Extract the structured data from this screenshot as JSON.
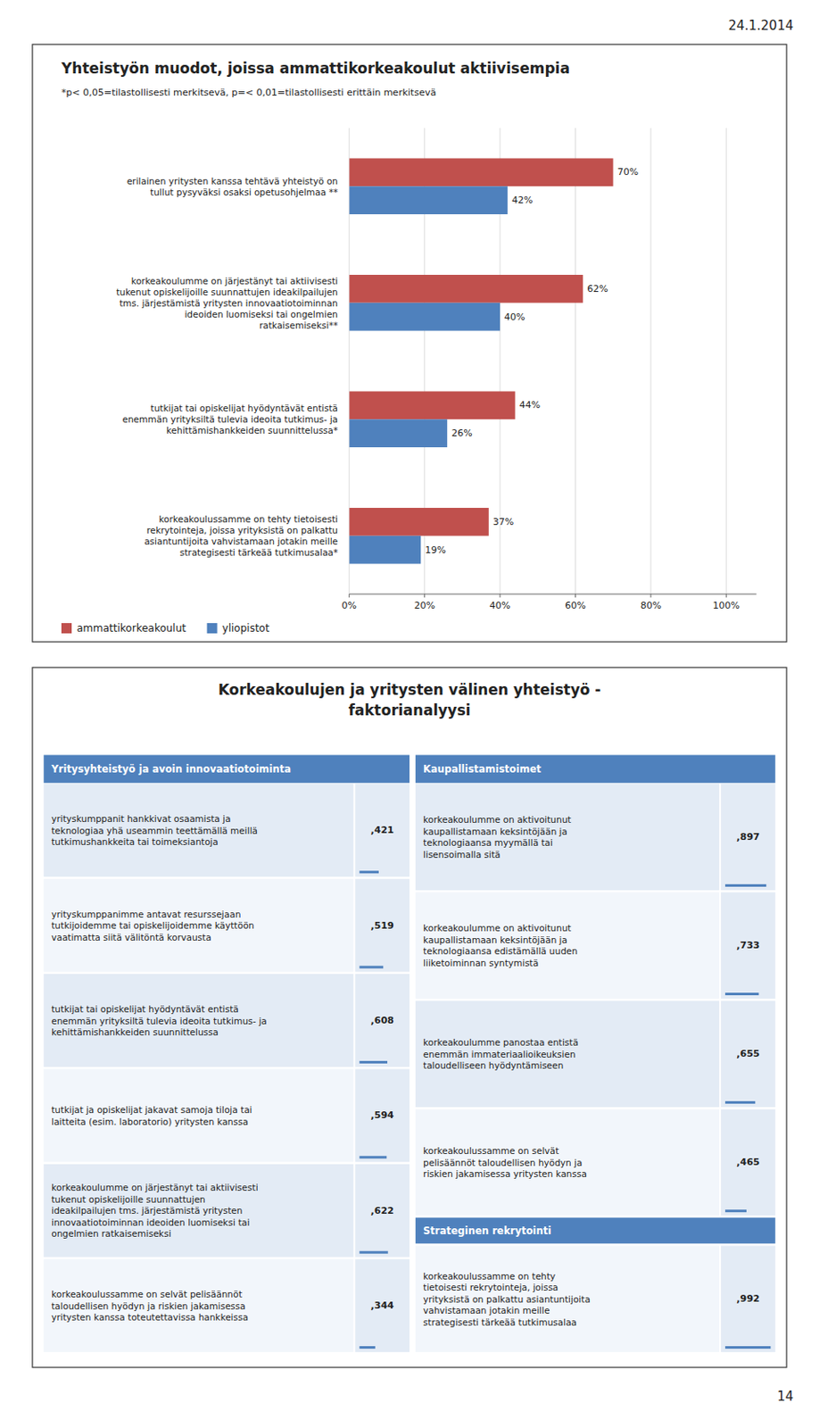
{
  "date_label": "24.1.2014",
  "page_number": "14",
  "table_title": "Korkeakoulujen ja yritysten välinen yhteistyö -\nfaktorianalyysi",
  "chart_data": [
    {
      "type": "bar",
      "orientation": "horizontal",
      "title": "Yhteistyön muodot, joissa ammattikorkeakoulut aktiivisempia",
      "subtitle": "*p< 0,05=tilastollisesti merkitsevä, p=< 0,01=tilastollisesti erittäin merkitsevä",
      "categories": [
        "erilainen yritysten kanssa tehtävä yhteistyö on\ntullut pysyväksi osaksi opetusohjelmaa **",
        "korkeakoulumme on järjestänyt tai aktiivisesti\ntukenut opiskelijoille suunnattujen ideakilpailujen\ntms. järjestämistä yritysten innovaatiotoiminnan\nideoiden luomiseksi tai ongelmien\nratkaisemiseksi**",
        "tutkijat tai opiskelijat hyödyntävät entistä\nenemmän yrityksiltä tulevia ideoita tutkimus- ja\nkehittämishankkeiden suunnittelussa*",
        "korkeakoulussamme on tehty tietoisesti\nrekrytointeja, joissa yrityksistä on palkattu\nasiantuntijoita vahvistamaan jotakin meille\nstrategisesti tärkeää tutkimusalaa*"
      ],
      "series": [
        {
          "name": "ammattikorkeakoulut",
          "color": "#C0504D",
          "values": [
            70,
            62,
            44,
            37
          ],
          "value_labels": [
            "70%",
            "62%",
            "44%",
            "37%"
          ]
        },
        {
          "name": "yliopistot",
          "color": "#4F81BD",
          "values": [
            42,
            40,
            26,
            19
          ],
          "value_labels": [
            "42%",
            "40%",
            "26%",
            "19%"
          ]
        }
      ],
      "xlim": [
        0,
        108
      ],
      "xticks": [
        {
          "value": 0,
          "label": "0%"
        },
        {
          "value": 20,
          "label": "20%"
        },
        {
          "value": 40,
          "label": "40%"
        },
        {
          "value": 60,
          "label": "60%"
        },
        {
          "value": 80,
          "label": "80%"
        },
        {
          "value": 100,
          "label": "100%"
        }
      ],
      "grid": true,
      "legend": "lower left",
      "data_labels": true
    },
    {
      "type": "table",
      "title": "Yritysyhteistyö ja avoin innovaatiotoiminta",
      "color": "#4F81BD",
      "categories": [
        "yrityskumppanit hankkivat osaamista ja\nteknologiaa yhä useammin teettämällä meillä\ntutkimushankkeita tai toimeksiantoja",
        "yrityskumppanimme antavat resurssejaan\ntutkijoidemme tai opiskelijoidemme käyttöön\nvaatimatta siitä välitöntä korvausta",
        "tutkijat tai opiskelijat hyödyntävät entistä\nenemmän yrityksiltä tulevia ideoita tutkimus- ja\nkehittämishankkeiden suunnittelussa",
        "tutkijat ja opiskelijat jakavat samoja tiloja tai\nlaitteita (esim. laboratorio) yritysten kanssa",
        "korkeakoulumme on järjestänyt tai aktiivisesti\ntukenut opiskelijoille suunnattujen\nideakilpailujen tms. järjestämistä yritysten\ninnovaatiotoiminnan ideoiden luomiseksi tai\nongelmien ratkaisemiseksi",
        "korkeakoulussamme on selvät pelisäännöt\ntaloudellisen hyödyn ja riskien jakamisessa\nyritysten kanssa toteutettavissa hankkeissa"
      ],
      "values": [
        0.421,
        0.519,
        0.608,
        0.594,
        0.622,
        0.344
      ],
      "value_labels": [
        ",421",
        ",519",
        ",608",
        ",594",
        ",622",
        ",344"
      ],
      "xlim": [
        0,
        1
      ],
      "data_labels": true
    },
    {
      "type": "table",
      "title": "Kaupallistamistoimet",
      "color": "#4F81BD",
      "categories": [
        "korkeakoulumme on aktivoitunut\nkaupallistamaan keksintöjään ja\nteknologiaansa myymällä tai\nlisensoimalla sitä",
        "korkeakoulumme on aktivoitunut\nkaupallistamaan keksintöjään ja\nteknologiaansa edistämällä uuden\nliiketoiminnan syntymistä",
        "korkeakoulumme panostaa entistä\nenemmän immateriaalioikeuksien\ntaloudelliseen hyödyntämiseen",
        "korkeakoulussamme on selvät\npelisäännöt taloudellisen hyödyn ja\nriskien jakamisessa yritysten kanssa"
      ],
      "values": [
        0.897,
        0.733,
        0.655,
        0.465
      ],
      "value_labels": [
        ",897",
        ",733",
        ",655",
        ",465"
      ],
      "xlim": [
        0,
        1
      ],
      "data_labels": true
    },
    {
      "type": "table",
      "title": "Strateginen rekrytointi",
      "color": "#4F81BD",
      "categories": [
        "korkeakoulussamme on tehty\ntietoisesti rekrytointeja, joissa\nyrityksistä on palkattu asiantuntijoita\nvahvistamaan jotakin meille\nstrategisesti tärkeää tutkimusalaa"
      ],
      "values": [
        0.992
      ],
      "value_labels": [
        ",992"
      ],
      "xlim": [
        0,
        1
      ],
      "data_labels": true
    }
  ]
}
